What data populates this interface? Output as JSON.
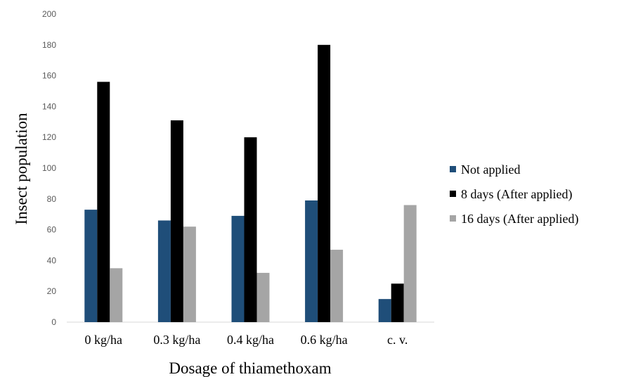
{
  "chart_data": {
    "type": "bar",
    "title": "",
    "xlabel": "Dosage of thiamethoxam",
    "ylabel": "Insect population",
    "ylim": [
      0,
      200
    ],
    "yticks": [
      0,
      20,
      40,
      60,
      80,
      100,
      120,
      140,
      160,
      180,
      200
    ],
    "categories": [
      "0 kg/ha",
      "0.3 kg/ha",
      "0.4 kg/ha",
      "0.6 kg/ha",
      "c. v."
    ],
    "series": [
      {
        "name": "Not applied",
        "color": "#1f4e79",
        "values": [
          73,
          66,
          69,
          79,
          15
        ]
      },
      {
        "name": "8 days (After applied)",
        "color": "#000000",
        "values": [
          156,
          131,
          120,
          180,
          25
        ]
      },
      {
        "name": "16 days (After applied)",
        "color": "#a5a5a5",
        "values": [
          35,
          62,
          32,
          47,
          76
        ]
      }
    ],
    "grid": false,
    "legend": "right"
  }
}
